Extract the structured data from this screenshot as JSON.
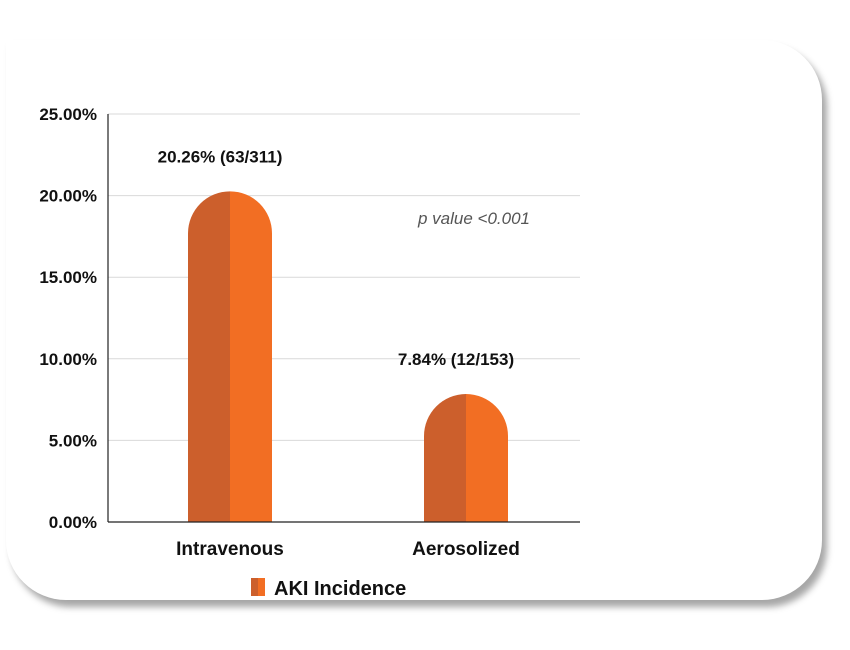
{
  "chart_data": {
    "type": "bar",
    "categories": [
      "Intravenous",
      "Aerosolized"
    ],
    "series": [
      {
        "name": "AKI Incidence",
        "values": [
          20.26,
          7.84
        ]
      }
    ],
    "data_labels": [
      "20.26% (63/311)",
      "7.84% (12/153)"
    ],
    "yticks": [
      "0.00%",
      "5.00%",
      "10.00%",
      "15.00%",
      "20.00%",
      "25.00%"
    ],
    "ylim": [
      0,
      25
    ],
    "annotation": "p value <0.001",
    "grid": true,
    "legend": "bottom-center",
    "colors": {
      "bar_left": "#cc5f2c",
      "bar_right": "#f26e23",
      "grid": "#d9d9d9",
      "axis": "#222222"
    }
  }
}
